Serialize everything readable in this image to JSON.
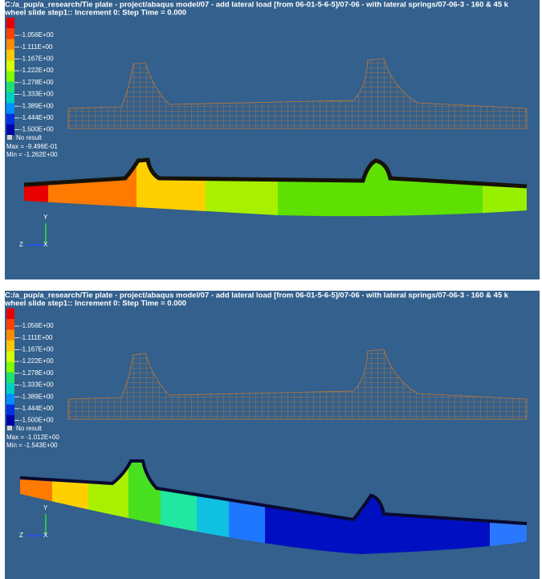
{
  "panels": [
    {
      "header": {
        "path": "C:/a_pup/a_research/Tie plate - project/abaqus model/07 - add lateral load [from 06-01-5-6-5]/07-06 - with lateral springs/07-06-3 - 160 & 45 k",
        "step": "wheel slide step1::  Increment      0: Step Time =    0.000"
      },
      "legend": {
        "labels": [
          "-1.056E+00",
          "-1.111E+00",
          "-1.167E+00",
          "-1.222E+00",
          "-1.278E+00",
          "-1.333E+00",
          "-1.389E+00",
          "-1.444E+00",
          "-1.500E+00"
        ],
        "no_result": "No result",
        "max": "Max = -9.496E-01",
        "min": "Min = -1.262E+00"
      },
      "triad": {
        "y": "Y",
        "z": "Z",
        "x": "X"
      }
    },
    {
      "header": {
        "path": "C:/a_pup/a_research/Tie plate - project/abaqus model/07 - add lateral load [from 06-01-5-6-5]/07-06 - with lateral springs/07-06-3 - 160 & 45 k",
        "step": "wheel slide step1::  Increment      0: Step Time =    0.000"
      },
      "legend": {
        "labels": [
          "-1.056E+00",
          "-1.111E+00",
          "-1.167E+00",
          "-1.222E+00",
          "-1.278E+00",
          "-1.333E+00",
          "-1.389E+00",
          "-1.444E+00",
          "-1.500E+00"
        ],
        "no_result": "No result",
        "max": "Max = -1.012E+00",
        "min": "Min = -1.543E+00"
      },
      "triad": {
        "y": "Y",
        "z": "Z",
        "x": "X"
      }
    }
  ]
}
